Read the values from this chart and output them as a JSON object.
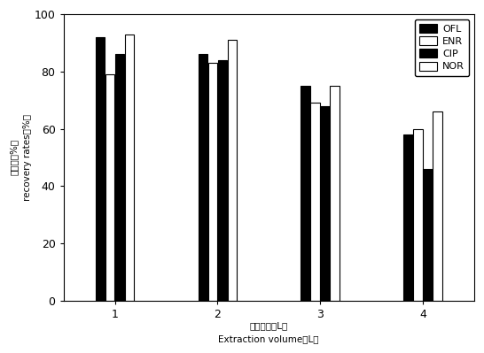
{
  "categories": [
    1,
    2,
    3,
    4
  ],
  "series": {
    "OFL": [
      92,
      86,
      75,
      58
    ],
    "ENR": [
      79,
      83,
      69,
      60
    ],
    "CIP": [
      86,
      84,
      68,
      46
    ],
    "NOR": [
      93,
      91,
      75,
      66
    ]
  },
  "colors": {
    "OFL": "#000000",
    "ENR": "#ffffff",
    "CIP": "#000000",
    "NOR": "#ffffff"
  },
  "edge_colors": {
    "OFL": "#000000",
    "ENR": "#000000",
    "CIP": "#000000",
    "NOR": "#000000"
  },
  "ylabel_line1": "回收率（%）",
  "ylabel_line2": "recovery rates（%）",
  "xlabel_line1": "萨取体积（L）",
  "xlabel_line2": "Extraction volume（L）",
  "ylim": [
    0,
    100
  ],
  "yticks": [
    0,
    20,
    40,
    60,
    80,
    100
  ],
  "bar_width": 0.09,
  "bar_gap": 0.005
}
